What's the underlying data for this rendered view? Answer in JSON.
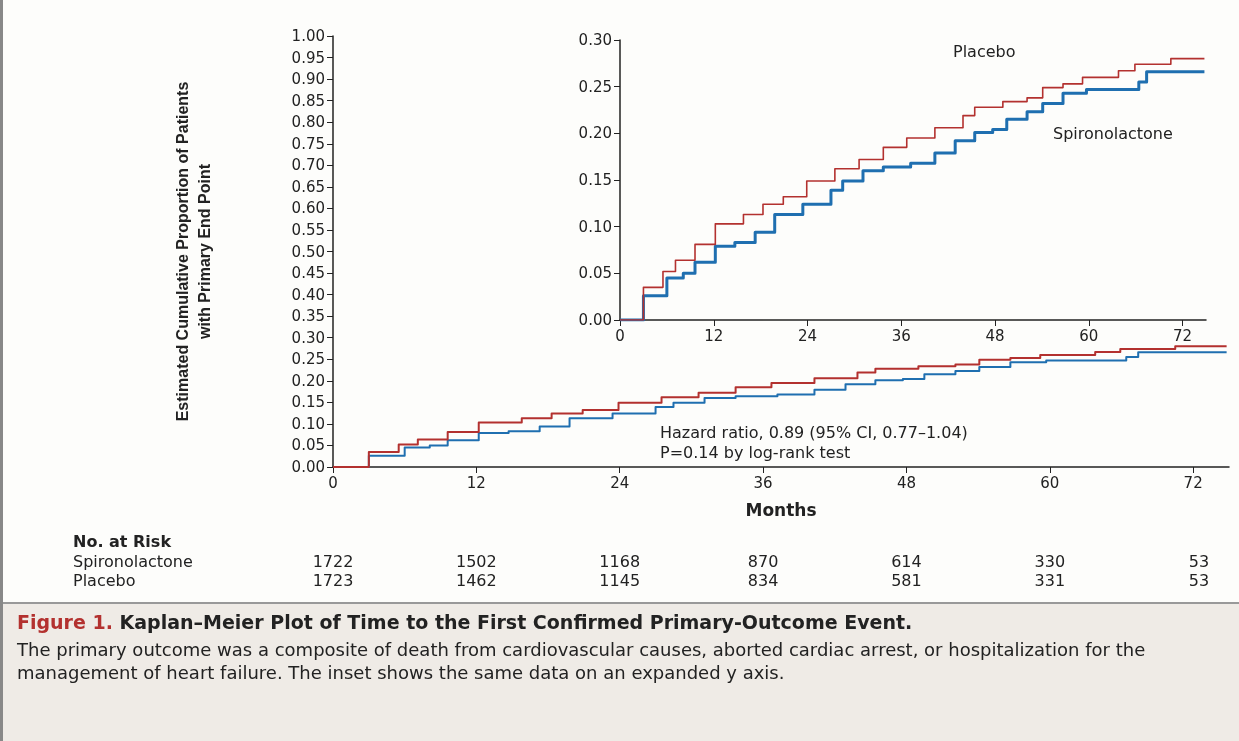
{
  "chart_data": [
    {
      "type": "step",
      "title": "Figure 1. Kaplan–Meier Plot of Time to the First Confirmed Primary-Outcome Event.",
      "xlabel": "Months",
      "ylabel": "Estimated Cumulative Proportion of Patients\nwith Primary End Point",
      "xlim": [
        0,
        75
      ],
      "xticks": [
        0,
        12,
        24,
        36,
        48,
        60,
        72
      ],
      "ylim": [
        0,
        1
      ],
      "yticks": [
        {
          "value": 0,
          "label": "0.00"
        },
        {
          "value": 0.05,
          "label": "0.05"
        },
        {
          "value": 0.1,
          "label": "0.10"
        },
        {
          "value": 0.15,
          "label": "0.15"
        },
        {
          "value": 0.2,
          "label": "0.20"
        },
        {
          "value": 0.25,
          "label": "0.25"
        },
        {
          "value": 0.3,
          "label": "0.30"
        },
        {
          "value": 0.35,
          "label": "0.35"
        },
        {
          "value": 0.4,
          "label": "0.40"
        },
        {
          "value": 0.45,
          "label": "0.45"
        },
        {
          "value": 0.5,
          "label": "0.50"
        },
        {
          "value": 0.55,
          "label": "0.55"
        },
        {
          "value": 0.6,
          "label": "0.60"
        },
        {
          "value": 0.65,
          "label": "0.65"
        },
        {
          "value": 0.7,
          "label": "0.70"
        },
        {
          "value": 0.75,
          "label": "0.75"
        },
        {
          "value": 0.8,
          "label": "0.80"
        },
        {
          "value": 0.85,
          "label": "0.85"
        },
        {
          "value": 0.9,
          "label": "0.90"
        },
        {
          "value": 0.95,
          "label": "0.95"
        },
        {
          "value": 1,
          "label": "1.00"
        }
      ],
      "marker": "none",
      "series": [
        {
          "color": "#1f6fb0",
          "x": [
            0,
            3.0,
            6.0,
            8.1,
            9.6,
            12.2,
            14.7,
            17.3,
            19.8,
            23.4,
            27.0,
            28.5,
            31.1,
            33.7,
            37.2,
            40.3,
            42.9,
            45.4,
            47.7,
            49.5,
            52.1,
            54.1,
            56.7,
            59.7,
            64.9,
            66.4,
            67.4,
            74.8
          ],
          "values": [
            0,
            0.026,
            0.045,
            0.05,
            0.062,
            0.079,
            0.083,
            0.094,
            0.113,
            0.124,
            0.139,
            0.149,
            0.16,
            0.164,
            0.168,
            0.179,
            0.192,
            0.201,
            0.204,
            0.215,
            0.223,
            0.232,
            0.243,
            0.247,
            0.247,
            0.255,
            0.266,
            0.266
          ]
        },
        {
          "color": "#b3312f",
          "x": [
            0,
            3.0,
            5.5,
            7.1,
            9.6,
            12.2,
            15.8,
            18.3,
            20.9,
            23.9,
            27.5,
            30.6,
            33.7,
            36.7,
            40.3,
            43.9,
            45.4,
            49.0,
            52.1,
            54.1,
            56.7,
            59.2,
            63.8,
            65.9,
            70.5,
            74.8
          ],
          "values": [
            0,
            0.035,
            0.052,
            0.064,
            0.081,
            0.103,
            0.113,
            0.124,
            0.132,
            0.149,
            0.162,
            0.172,
            0.185,
            0.195,
            0.206,
            0.219,
            0.228,
            0.234,
            0.238,
            0.249,
            0.253,
            0.26,
            0.267,
            0.274,
            0.28,
            0.28
          ]
        }
      ],
      "annotations": [
        "Hazard ratio, 0.89 (95% CI, 0.77–1.04)",
        "P=0.14 by log-rank test",
        "No. at Risk",
        "Spironolactone",
        "1722",
        "1502",
        "1168",
        "870",
        "614",
        "330",
        "53",
        "Placebo",
        "1723",
        "1462",
        "1145",
        "834",
        "581",
        "331",
        "53",
        "The primary outcome was a composite of death from cardiovascular causes, aborted cardiac arrest, or hospitalization for the management of heart failure. The inset shows the same data on an expanded y axis."
      ]
    },
    {
      "type": "step",
      "xlim": [
        0,
        75
      ],
      "xticks": [
        0,
        12,
        24,
        36,
        48,
        60,
        72
      ],
      "ylim": [
        0,
        0.3
      ],
      "yticks": [
        {
          "value": 0,
          "label": "0.00"
        },
        {
          "value": 0.05,
          "label": "0.05"
        },
        {
          "value": 0.1,
          "label": "0.10"
        },
        {
          "value": 0.15,
          "label": "0.15"
        },
        {
          "value": 0.2,
          "label": "0.20"
        },
        {
          "value": 0.25,
          "label": "0.25"
        },
        {
          "value": 0.3,
          "label": "0.30"
        }
      ],
      "marker": "none",
      "series": [
        {
          "name": "Spironolactone",
          "color": "#1f6fb0",
          "x": [
            0,
            3.0,
            6.0,
            8.1,
            9.6,
            12.2,
            14.7,
            17.3,
            19.8,
            23.4,
            27.0,
            28.5,
            31.1,
            33.7,
            37.2,
            40.3,
            42.9,
            45.4,
            47.7,
            49.5,
            52.1,
            54.1,
            56.7,
            59.7,
            64.9,
            66.4,
            67.4,
            74.8
          ],
          "values": [
            0,
            0.026,
            0.045,
            0.05,
            0.062,
            0.079,
            0.083,
            0.094,
            0.113,
            0.124,
            0.139,
            0.149,
            0.16,
            0.164,
            0.168,
            0.179,
            0.192,
            0.201,
            0.204,
            0.215,
            0.223,
            0.232,
            0.243,
            0.247,
            0.247,
            0.255,
            0.266,
            0.266
          ]
        },
        {
          "name": "Placebo",
          "color": "#b3312f",
          "x": [
            0,
            3.0,
            5.5,
            7.1,
            9.6,
            12.2,
            15.8,
            18.3,
            20.9,
            23.9,
            27.5,
            30.6,
            33.7,
            36.7,
            40.3,
            43.9,
            45.4,
            49.0,
            52.1,
            54.1,
            56.7,
            59.2,
            63.8,
            65.9,
            70.5,
            74.8
          ],
          "values": [
            0,
            0.035,
            0.052,
            0.064,
            0.081,
            0.103,
            0.113,
            0.124,
            0.132,
            0.149,
            0.162,
            0.172,
            0.185,
            0.195,
            0.206,
            0.219,
            0.228,
            0.234,
            0.238,
            0.249,
            0.253,
            0.26,
            0.267,
            0.274,
            0.28,
            0.28
          ]
        }
      ]
    }
  ]
}
